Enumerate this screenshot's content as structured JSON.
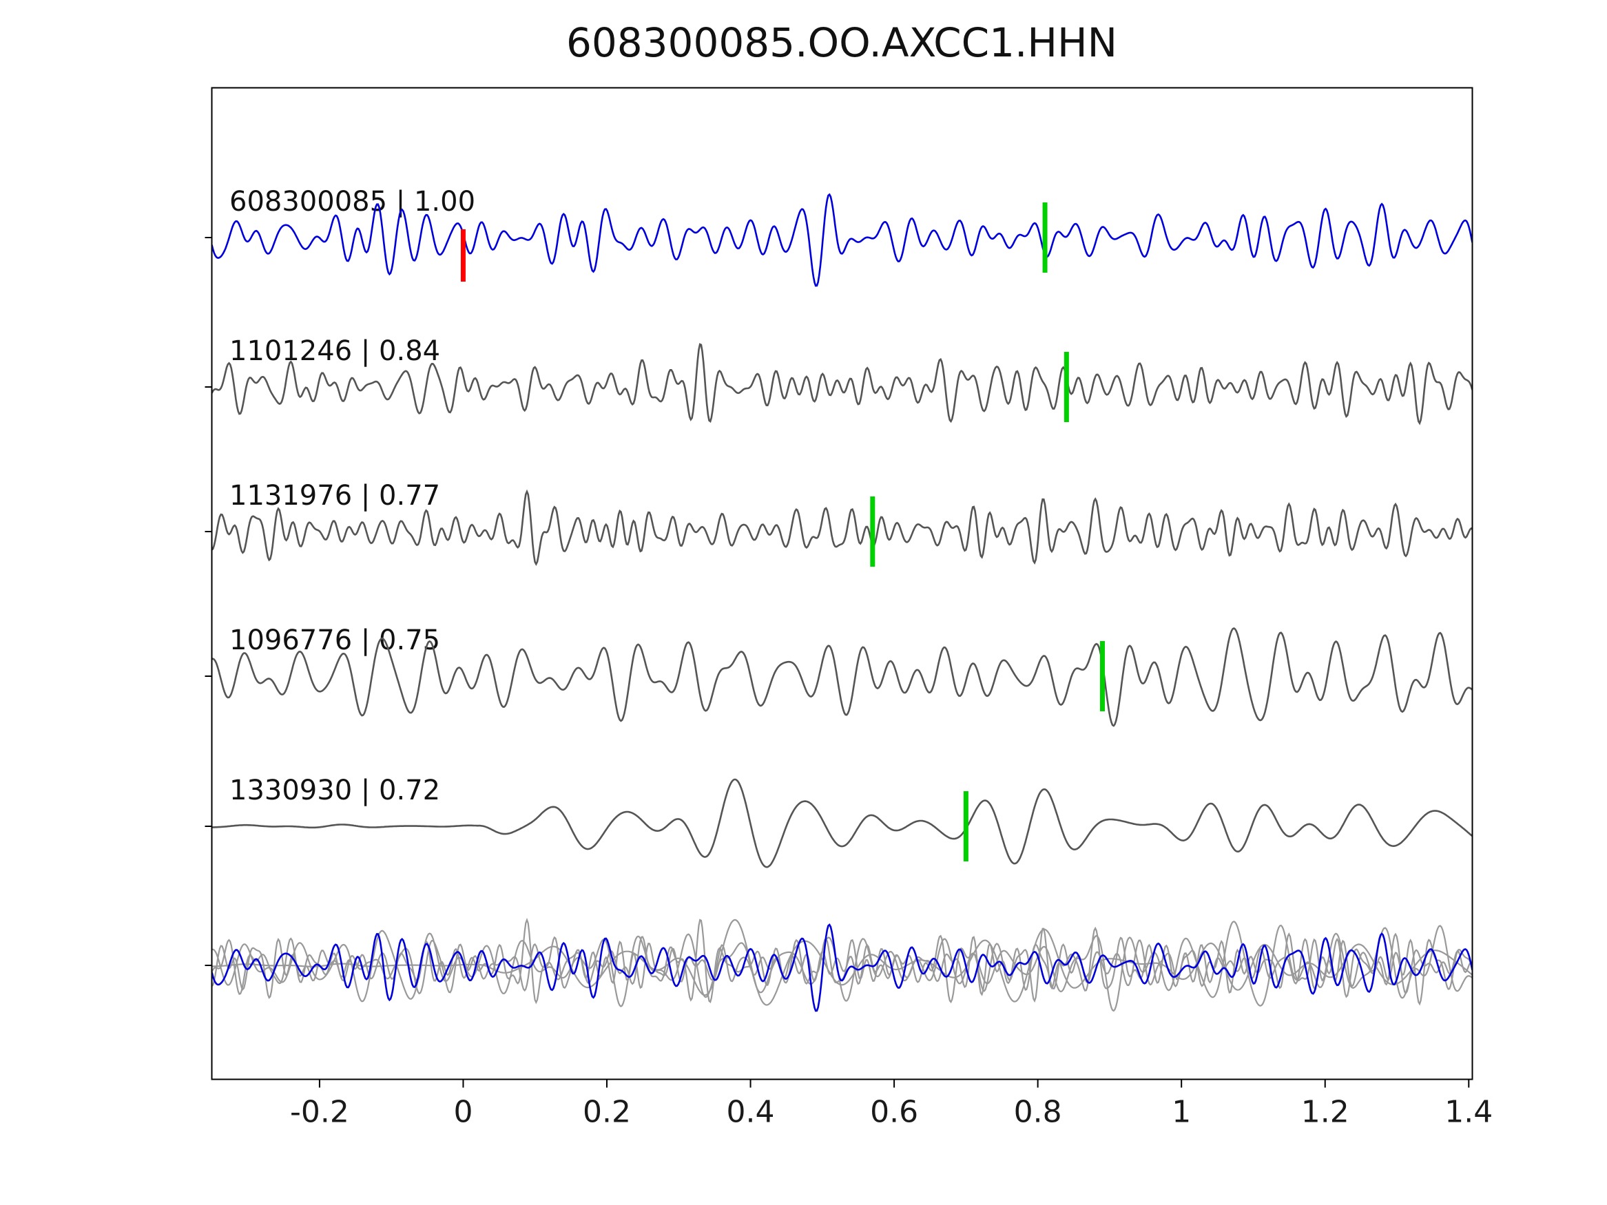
{
  "chart_data": {
    "type": "line",
    "title": "608300085.OO.AXCC1.HHN",
    "xlabel": "",
    "ylabel": "",
    "xlim": [
      -0.35,
      1.405
    ],
    "x_tick_values": [
      -0.2,
      0,
      0.2,
      0.4,
      0.6,
      0.8,
      1,
      1.2,
      1.4
    ],
    "x_tick_labels": [
      "-0.2",
      "0",
      "0.2",
      "0.4",
      "0.6",
      "0.8",
      "1",
      "1.2",
      "1.4"
    ],
    "grid": false,
    "legend": "none",
    "description": "Template matching / waveform correlation plot: five aligned seismic traces with correlation coefficients, green pick markers, red origin marker on template trace, and all traces overlaid at the bottom.",
    "traces": [
      {
        "label": "608300085 | 1.00",
        "event_id": "608300085",
        "correlation": 1.0,
        "color": "#0000dd",
        "pick_time": 0.81,
        "pick_color": "#00d000",
        "origin_time": 0.0,
        "origin_color": "#ff0000",
        "is_template": true
      },
      {
        "label": "1101246 | 0.84",
        "event_id": "1101246",
        "correlation": 0.84,
        "color": "#555555",
        "pick_time": 0.84,
        "pick_color": "#00d000"
      },
      {
        "label": "1131976 | 0.77",
        "event_id": "1131976",
        "correlation": 0.77,
        "color": "#555555",
        "pick_time": 0.57,
        "pick_color": "#00d000"
      },
      {
        "label": "1096776 | 0.75",
        "event_id": "1096776",
        "correlation": 0.75,
        "color": "#555555",
        "pick_time": 0.89,
        "pick_color": "#00d000"
      },
      {
        "label": "1330930 | 0.72",
        "event_id": "1330930",
        "correlation": 0.72,
        "color": "#555555",
        "pick_time": 0.7,
        "pick_color": "#00d000",
        "quiet_before_zero": true
      }
    ],
    "overlay": {
      "description": "all five traces superimposed at bottom of plot",
      "gray_color": "#999999",
      "highlight_color": "#0000dd"
    },
    "axis_color": "#000000",
    "waveform_amplitude_note": "band-limited noise-like seismic waveforms, normalized per trace"
  }
}
